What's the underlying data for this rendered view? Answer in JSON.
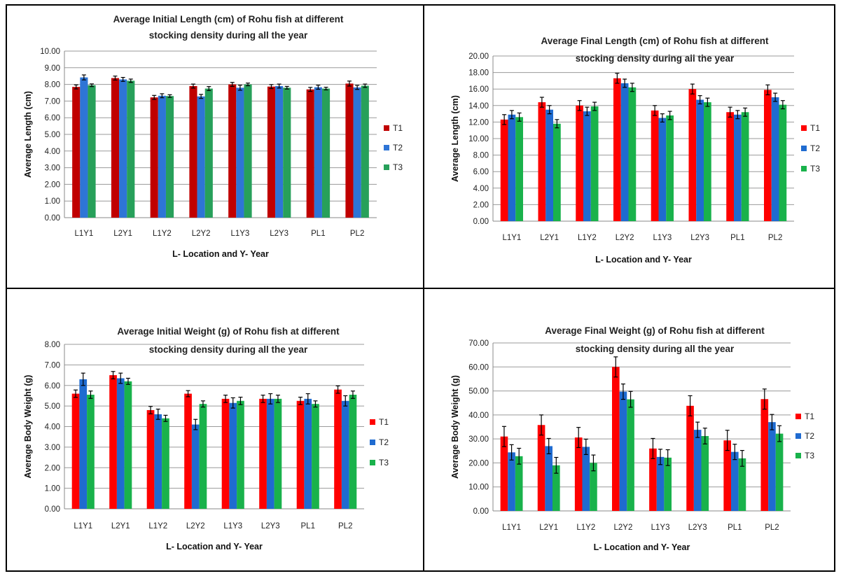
{
  "colors": {
    "palette_a": [
      "#C00000",
      "#2E75D6",
      "#27A05A"
    ],
    "palette_b": [
      "#FF0000",
      "#1F6BD0",
      "#19B24B"
    ],
    "error_bar": "#000000",
    "frame": "#000000"
  },
  "chart_data": [
    {
      "type": "bar",
      "title_lines": [
        "Average Initial Length (cm) of Rohu fish at different",
        "stocking density during all the year"
      ],
      "xlabel": "L- Location and Y- Year",
      "ylabel": "Average Length (cm)",
      "categories": [
        "L1Y1",
        "L2Y1",
        "L1Y2",
        "L2Y2",
        "L1Y3",
        "L2Y3",
        "PL1",
        "PL2"
      ],
      "ylim": [
        0,
        10
      ],
      "ystep": 1,
      "ytick_labels": [
        "0.00",
        "1.00",
        "2.00",
        "3.00",
        "4.00",
        "5.00",
        "6.00",
        "7.00",
        "8.00",
        "9.00",
        "10.00"
      ],
      "grid": true,
      "legend_position": "right",
      "palette": "palette_a",
      "series": [
        {
          "name": "T1",
          "values": [
            7.85,
            8.38,
            7.22,
            7.9,
            8.0,
            7.87,
            7.7,
            8.05
          ],
          "errors": [
            0.12,
            0.12,
            0.12,
            0.12,
            0.12,
            0.12,
            0.12,
            0.15
          ]
        },
        {
          "name": "T2",
          "values": [
            8.42,
            8.3,
            7.32,
            7.28,
            7.8,
            7.9,
            7.83,
            7.82
          ],
          "errors": [
            0.15,
            0.12,
            0.12,
            0.12,
            0.15,
            0.12,
            0.12,
            0.12
          ]
        },
        {
          "name": "T3",
          "values": [
            7.95,
            8.22,
            7.3,
            7.75,
            8.0,
            7.8,
            7.75,
            7.92
          ],
          "errors": [
            0.08,
            0.1,
            0.08,
            0.12,
            0.08,
            0.08,
            0.08,
            0.1
          ]
        }
      ]
    },
    {
      "type": "bar",
      "title_lines": [
        "Average Final Length (cm) of Rohu fish at different",
        "stocking density during all the year"
      ],
      "xlabel": "L- Location and Y- Year",
      "ylabel": "Average Length (cm)",
      "categories": [
        "L1Y1",
        "L2Y1",
        "L1Y2",
        "L2Y2",
        "L1Y3",
        "L2Y3",
        "PL1",
        "PL2"
      ],
      "ylim": [
        0,
        20
      ],
      "ystep": 2,
      "ytick_labels": [
        "0.00",
        "2.00",
        "4.00",
        "6.00",
        "8.00",
        "10.00",
        "12.00",
        "14.00",
        "16.00",
        "18.00",
        "20.00"
      ],
      "grid": true,
      "legend_position": "right",
      "palette": "palette_b",
      "series": [
        {
          "name": "T1",
          "values": [
            12.3,
            14.4,
            14.0,
            17.3,
            13.4,
            16.0,
            13.2,
            15.9
          ],
          "errors": [
            0.6,
            0.6,
            0.6,
            0.6,
            0.6,
            0.6,
            0.6,
            0.6
          ]
        },
        {
          "name": "T2",
          "values": [
            12.9,
            13.5,
            13.3,
            16.7,
            12.5,
            14.7,
            12.9,
            15.0
          ],
          "errors": [
            0.5,
            0.5,
            0.5,
            0.5,
            0.5,
            0.5,
            0.5,
            0.5
          ]
        },
        {
          "name": "T3",
          "values": [
            12.6,
            11.8,
            13.9,
            16.2,
            12.8,
            14.4,
            13.2,
            14.1
          ],
          "errors": [
            0.5,
            0.5,
            0.5,
            0.5,
            0.5,
            0.5,
            0.5,
            0.5
          ]
        }
      ]
    },
    {
      "type": "bar",
      "title_lines": [
        "Average Initial Weight (g) of Rohu fish at different",
        "stocking density during all the year"
      ],
      "xlabel": "L- Location and Y- Year",
      "ylabel": "Average Body Weight (g)",
      "categories": [
        "L1Y1",
        "L2Y1",
        "L1Y2",
        "L2Y2",
        "L1Y3",
        "L2Y3",
        "PL1",
        "PL2"
      ],
      "ylim": [
        0,
        8
      ],
      "ystep": 1,
      "ytick_labels": [
        "0.00",
        "1.00",
        "2.00",
        "3.00",
        "4.00",
        "5.00",
        "6.00",
        "7.00",
        "8.00"
      ],
      "grid": true,
      "legend_position": "right",
      "palette": "palette_b",
      "series": [
        {
          "name": "T1",
          "values": [
            5.6,
            6.5,
            4.8,
            5.6,
            5.35,
            5.35,
            5.25,
            5.8
          ],
          "errors": [
            0.18,
            0.18,
            0.18,
            0.15,
            0.18,
            0.18,
            0.18,
            0.18
          ]
        },
        {
          "name": "T2",
          "values": [
            6.3,
            6.35,
            4.6,
            4.1,
            5.15,
            5.35,
            5.35,
            5.25
          ],
          "errors": [
            0.3,
            0.25,
            0.25,
            0.25,
            0.25,
            0.25,
            0.25,
            0.25
          ]
        },
        {
          "name": "T3",
          "values": [
            5.55,
            6.2,
            4.4,
            5.1,
            5.25,
            5.35,
            5.1,
            5.55
          ],
          "errors": [
            0.18,
            0.15,
            0.15,
            0.15,
            0.18,
            0.18,
            0.15,
            0.18
          ]
        }
      ]
    },
    {
      "type": "bar",
      "title_lines": [
        "Average Final Weight (g) of Rohu fish at different",
        "stocking density during all the year"
      ],
      "xlabel": "L- Location and Y- Year",
      "ylabel": "Average Body Weight (g)",
      "categories": [
        "L1Y1",
        "L2Y1",
        "L1Y2",
        "L2Y2",
        "L1Y3",
        "L2Y3",
        "PL1",
        "PL2"
      ],
      "ylim": [
        0,
        70
      ],
      "ystep": 10,
      "ytick_labels": [
        "0.00",
        "10.00",
        "20.00",
        "30.00",
        "40.00",
        "50.00",
        "60.00",
        "70.00"
      ],
      "grid": true,
      "legend_position": "right",
      "palette": "palette_b",
      "series": [
        {
          "name": "T1",
          "values": [
            31.0,
            35.8,
            30.6,
            60.0,
            26.0,
            43.8,
            29.4,
            46.6
          ],
          "errors": [
            4.2,
            4.2,
            4.2,
            4.2,
            4.2,
            4.2,
            4.2,
            4.2
          ]
        },
        {
          "name": "T2",
          "values": [
            24.4,
            27.0,
            26.7,
            49.7,
            22.5,
            33.8,
            24.6,
            37.0
          ],
          "errors": [
            3.2,
            3.2,
            3.2,
            3.2,
            3.2,
            3.2,
            3.2,
            3.2
          ]
        },
        {
          "name": "T3",
          "values": [
            22.8,
            19.0,
            20.0,
            46.5,
            22.2,
            31.2,
            21.9,
            32.2
          ],
          "errors": [
            3.3,
            3.3,
            3.3,
            3.3,
            3.3,
            3.3,
            3.3,
            3.3
          ]
        }
      ]
    }
  ]
}
